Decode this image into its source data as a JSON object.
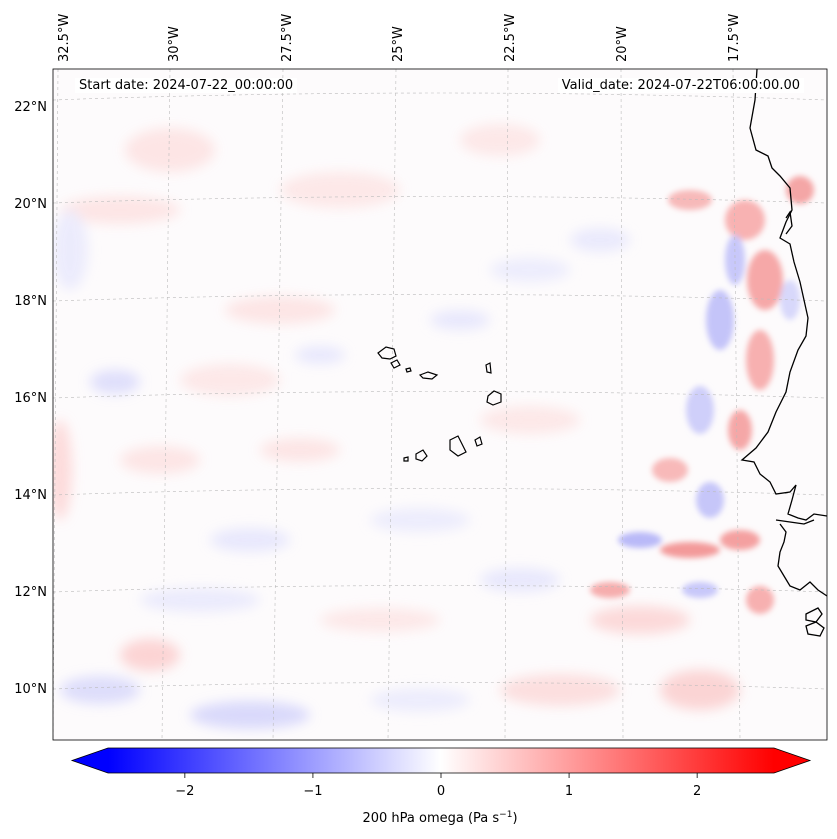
{
  "header": {
    "start_date": "Start date: 2024-07-22_00:00:00",
    "valid_date": "Valid_date: 2024-07-22T06:00:00.00"
  },
  "map": {
    "lon_labels": [
      "32.5°W",
      "30°W",
      "27.5°W",
      "25°W",
      "22.5°W",
      "20°W",
      "17.5°W"
    ],
    "lat_labels": [
      "22°N",
      "20°N",
      "18°N",
      "16°N",
      "14°N",
      "12°N",
      "10°N"
    ],
    "colors": {
      "negative": "#0000ff",
      "neutral": "#ffffff",
      "positive": "#ff0000",
      "coastline": "#000000",
      "gridline": "#bbbbbb"
    }
  },
  "colorbar": {
    "ticks": [
      "−2",
      "−1",
      "0",
      "1",
      "2"
    ],
    "tick_values": [
      -2,
      -1,
      0,
      1,
      2
    ],
    "range": [
      -2.6,
      2.6
    ],
    "label": "200 hPa omega (Pa s",
    "label_exp": "−1",
    "label_tail": ")"
  }
}
